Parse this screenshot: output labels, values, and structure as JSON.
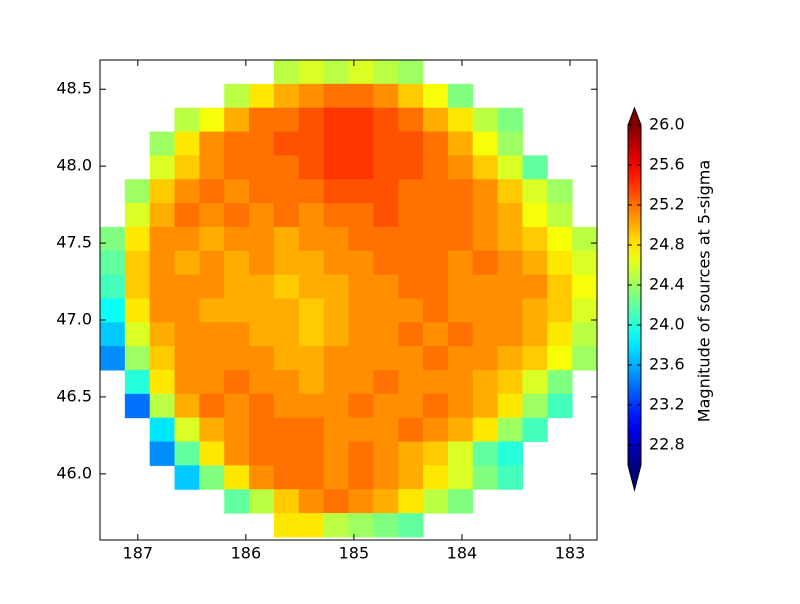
{
  "chart_data": {
    "type": "heatmap",
    "colorbar_label": "Magnitude of sources at 5-sigma",
    "colormap": "jet",
    "xlim": [
      187.35,
      182.75
    ],
    "ylim": [
      45.57,
      48.69
    ],
    "xticks": [
      187,
      186,
      185,
      184,
      183
    ],
    "yticks": [
      {
        "value": 46,
        "label": "46.0"
      },
      46.5,
      {
        "value": 47,
        "label": "47.0"
      },
      47.5,
      {
        "value": 48,
        "label": "48.0"
      },
      48.5
    ],
    "clim": [
      22.6,
      26.0
    ],
    "cticks": [
      22.8,
      23.2,
      23.6,
      {
        "value": 24,
        "label": "24.0"
      },
      24.4,
      24.8,
      25.2,
      25.6,
      {
        "value": 26,
        "label": "26.0"
      }
    ],
    "xbins": [
      187.35,
      187.12,
      186.89,
      186.66,
      186.43,
      186.2,
      185.97,
      185.74,
      185.51,
      185.28,
      185.05,
      184.82,
      184.59,
      184.36,
      184.13,
      183.9,
      183.67,
      183.44,
      183.21,
      182.98,
      182.75
    ],
    "ybins": [
      48.69,
      48.535,
      48.38,
      48.225,
      48.07,
      47.915,
      47.76,
      47.605,
      47.45,
      47.295,
      47.14,
      46.985,
      46.83,
      46.675,
      46.52,
      46.365,
      46.21,
      46.055,
      45.9,
      45.745,
      45.59
    ],
    "values": [
      [
        null,
        null,
        null,
        null,
        null,
        null,
        null,
        24.5,
        24.6,
        24.5,
        24.6,
        24.5,
        24.4,
        null,
        null,
        null,
        null,
        null,
        null,
        null
      ],
      [
        null,
        null,
        null,
        null,
        null,
        24.5,
        24.8,
        25.0,
        25.1,
        25.2,
        25.2,
        25.1,
        24.9,
        24.7,
        24.3,
        null,
        null,
        null,
        null,
        null
      ],
      [
        null,
        null,
        null,
        24.5,
        24.7,
        25.0,
        25.2,
        25.2,
        25.3,
        25.4,
        25.4,
        25.3,
        25.2,
        25.0,
        24.8,
        24.5,
        24.3,
        null,
        null,
        null
      ],
      [
        null,
        null,
        24.4,
        24.8,
        25.1,
        25.2,
        25.2,
        25.3,
        25.3,
        25.4,
        25.4,
        25.3,
        25.3,
        25.2,
        25.0,
        24.7,
        24.4,
        null,
        null,
        null
      ],
      [
        null,
        null,
        24.6,
        24.9,
        25.1,
        25.2,
        25.2,
        25.2,
        25.3,
        25.4,
        25.4,
        25.3,
        25.3,
        25.2,
        25.1,
        24.9,
        24.6,
        24.2,
        null,
        null
      ],
      [
        null,
        24.4,
        24.9,
        25.1,
        25.2,
        25.1,
        25.2,
        25.2,
        25.2,
        25.3,
        25.3,
        25.3,
        25.2,
        25.2,
        25.2,
        25.1,
        24.9,
        24.6,
        24.4,
        null
      ],
      [
        null,
        24.6,
        25.0,
        25.2,
        25.1,
        25.2,
        25.1,
        25.2,
        25.1,
        25.2,
        25.2,
        25.3,
        25.2,
        25.2,
        25.2,
        25.1,
        25.0,
        24.7,
        24.5,
        null
      ],
      [
        24.3,
        24.8,
        25.1,
        25.1,
        25.0,
        25.1,
        25.1,
        25.0,
        25.1,
        25.1,
        25.2,
        25.2,
        25.2,
        25.2,
        25.2,
        25.1,
        25.0,
        24.9,
        24.7,
        24.5
      ],
      [
        24.2,
        24.9,
        25.1,
        25.0,
        25.1,
        25.0,
        25.1,
        25.0,
        25.0,
        25.1,
        25.1,
        25.2,
        25.2,
        25.2,
        25.1,
        25.2,
        25.1,
        25.0,
        24.8,
        24.6
      ],
      [
        24.1,
        24.9,
        25.1,
        25.1,
        25.1,
        25.0,
        25.0,
        24.9,
        25.0,
        25.0,
        25.1,
        25.1,
        25.2,
        25.2,
        25.1,
        25.1,
        25.1,
        25.1,
        24.9,
        24.7
      ],
      [
        23.9,
        24.8,
        25.1,
        25.1,
        25.0,
        25.0,
        25.0,
        25.0,
        24.9,
        25.0,
        25.1,
        25.1,
        25.1,
        25.2,
        25.1,
        25.1,
        25.1,
        25.0,
        24.9,
        24.6
      ],
      [
        23.7,
        24.6,
        25.0,
        25.1,
        25.1,
        25.1,
        25.0,
        25.0,
        24.9,
        25.0,
        25.1,
        25.1,
        25.2,
        25.1,
        25.2,
        25.1,
        25.1,
        25.0,
        24.8,
        24.5
      ],
      [
        23.5,
        24.4,
        24.9,
        25.1,
        25.1,
        25.1,
        25.1,
        25.0,
        25.0,
        25.1,
        25.1,
        25.1,
        25.1,
        25.2,
        25.1,
        25.1,
        25.0,
        24.9,
        24.7,
        24.4
      ],
      [
        null,
        24.0,
        24.8,
        25.1,
        25.1,
        25.2,
        25.1,
        25.1,
        25.0,
        25.1,
        25.1,
        25.2,
        25.1,
        25.1,
        25.1,
        25.0,
        24.9,
        24.6,
        24.3,
        null
      ],
      [
        null,
        23.4,
        24.5,
        25.0,
        25.2,
        25.1,
        25.2,
        25.1,
        25.1,
        25.1,
        25.2,
        25.1,
        25.1,
        25.2,
        25.1,
        25.0,
        24.8,
        24.4,
        24.1,
        null
      ],
      [
        null,
        null,
        23.8,
        24.6,
        25.0,
        25.1,
        25.2,
        25.2,
        25.2,
        25.1,
        25.1,
        25.1,
        25.2,
        25.1,
        25.0,
        24.8,
        24.4,
        24.1,
        null,
        null
      ],
      [
        null,
        null,
        23.5,
        24.2,
        24.8,
        25.1,
        25.2,
        25.2,
        25.2,
        25.1,
        25.2,
        25.1,
        25.0,
        24.9,
        24.6,
        24.2,
        24.0,
        null,
        null,
        null
      ],
      [
        null,
        null,
        null,
        23.7,
        24.3,
        24.8,
        25.1,
        25.2,
        25.2,
        25.1,
        25.2,
        25.1,
        25.0,
        24.8,
        24.6,
        24.3,
        24.1,
        null,
        null,
        null
      ],
      [
        null,
        null,
        null,
        null,
        null,
        24.2,
        24.5,
        24.9,
        25.1,
        25.2,
        25.1,
        25.0,
        24.8,
        24.5,
        24.3,
        null,
        null,
        null,
        null,
        null
      ],
      [
        null,
        null,
        null,
        null,
        null,
        null,
        null,
        24.8,
        24.8,
        24.5,
        24.4,
        24.3,
        24.2,
        null,
        null,
        null,
        null,
        null,
        null,
        null
      ]
    ]
  }
}
